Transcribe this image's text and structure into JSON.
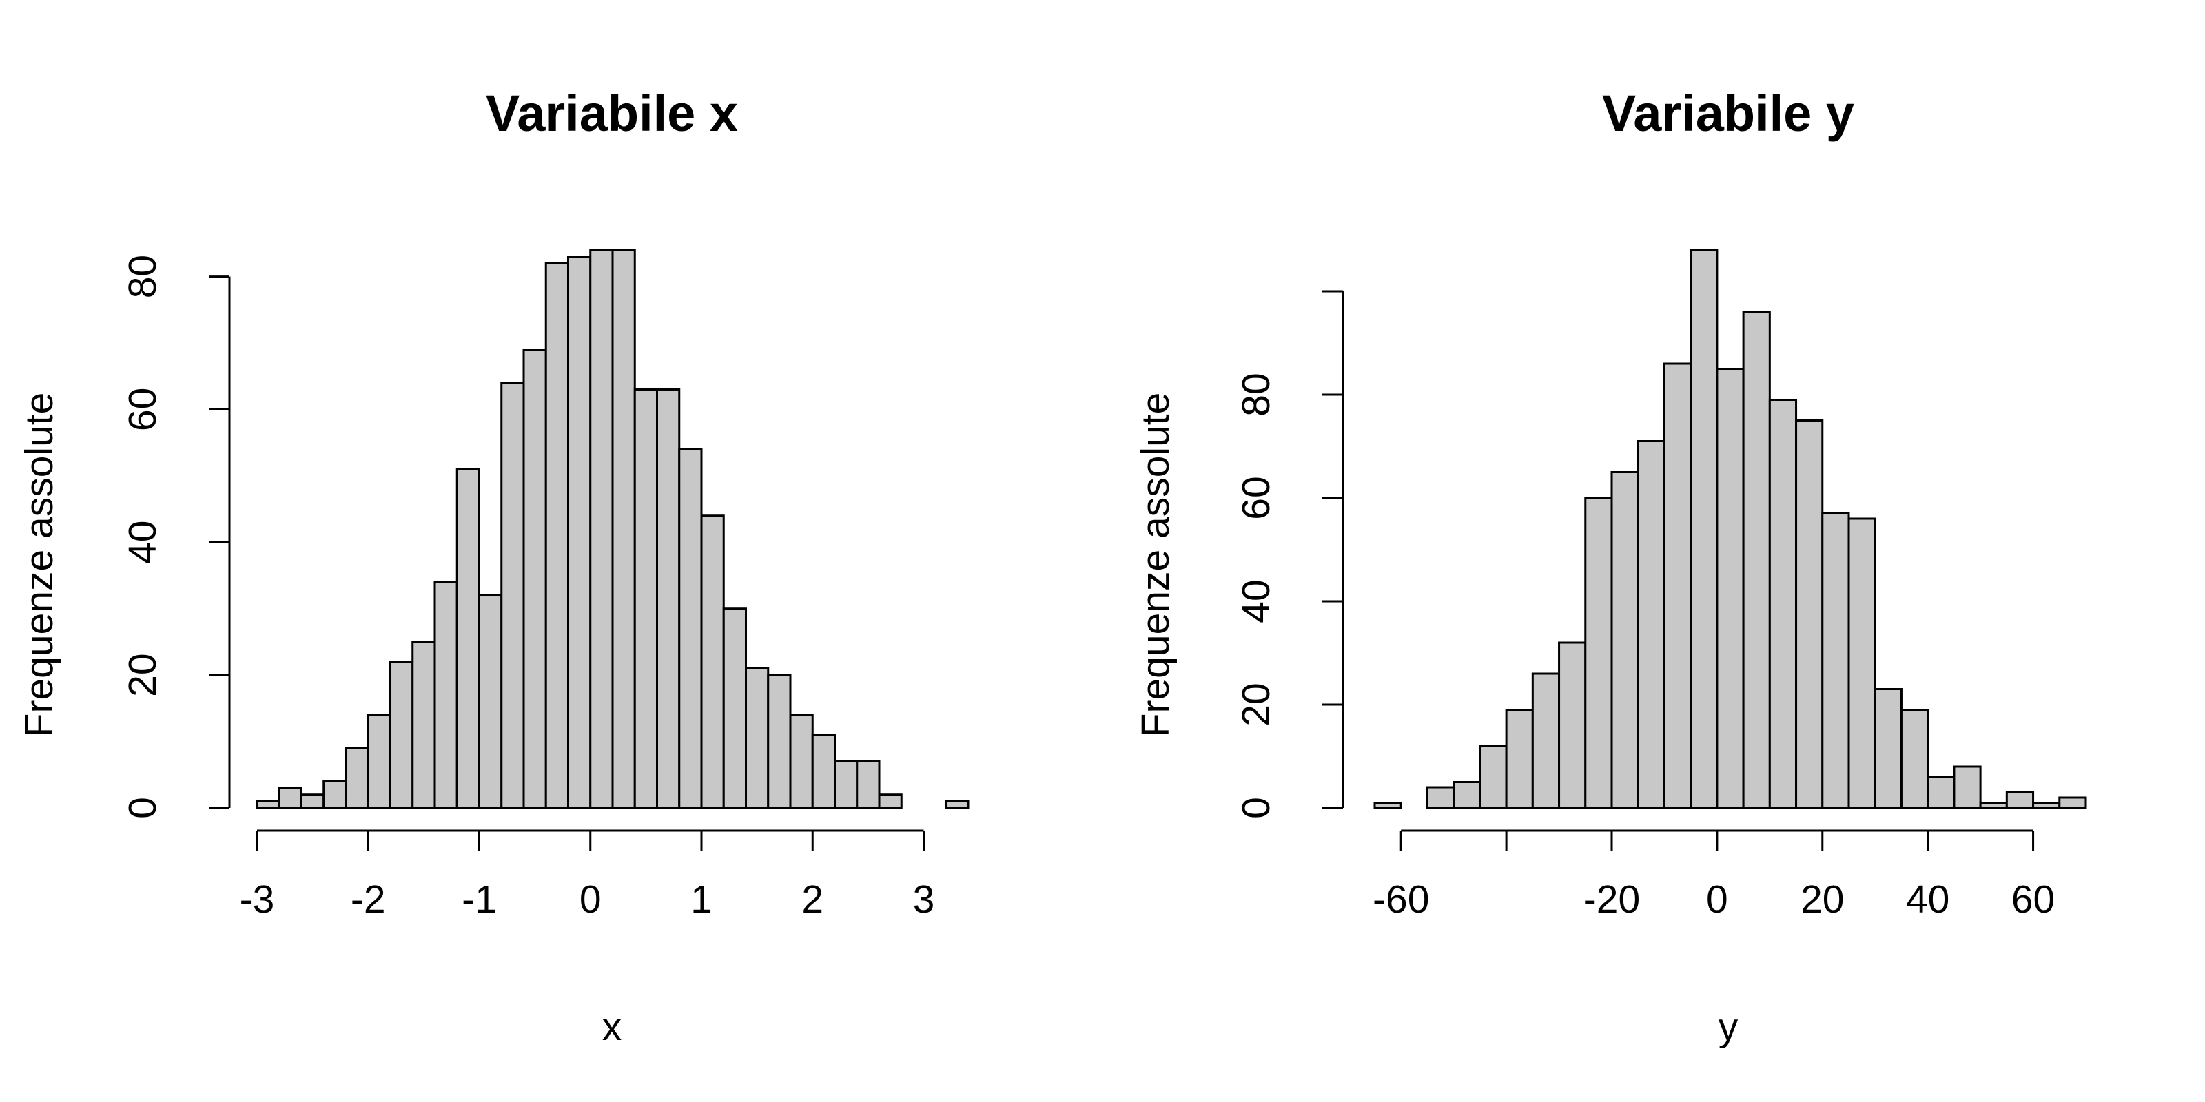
{
  "chart_data": [
    {
      "type": "bar",
      "title": "Variabile x",
      "xlabel": "x",
      "ylabel": "Frequenze assolute",
      "xlim": [
        -3,
        3.4
      ],
      "ylim": [
        0,
        84
      ],
      "xticks": [
        -3,
        -2,
        -1,
        0,
        1,
        2,
        3
      ],
      "yticks": [
        0,
        20,
        40,
        60,
        80
      ],
      "bin_width": 0.2,
      "bins": [
        {
          "from": -3.0,
          "to": -2.8,
          "count": 1
        },
        {
          "from": -2.8,
          "to": -2.6,
          "count": 3
        },
        {
          "from": -2.6,
          "to": -2.4,
          "count": 2
        },
        {
          "from": -2.4,
          "to": -2.2,
          "count": 4
        },
        {
          "from": -2.2,
          "to": -2.0,
          "count": 9
        },
        {
          "from": -2.0,
          "to": -1.8,
          "count": 14
        },
        {
          "from": -1.8,
          "to": -1.6,
          "count": 22
        },
        {
          "from": -1.6,
          "to": -1.4,
          "count": 25
        },
        {
          "from": -1.4,
          "to": -1.2,
          "count": 34
        },
        {
          "from": -1.2,
          "to": -1.0,
          "count": 51
        },
        {
          "from": -1.0,
          "to": -0.8,
          "count": 32
        },
        {
          "from": -0.8,
          "to": -0.6,
          "count": 64
        },
        {
          "from": -0.6,
          "to": -0.4,
          "count": 69
        },
        {
          "from": -0.4,
          "to": -0.2,
          "count": 82
        },
        {
          "from": -0.2,
          "to": 0.0,
          "count": 83
        },
        {
          "from": 0.0,
          "to": 0.2,
          "count": 84
        },
        {
          "from": 0.2,
          "to": 0.4,
          "count": 84
        },
        {
          "from": 0.4,
          "to": 0.6,
          "count": 63
        },
        {
          "from": 0.6,
          "to": 0.8,
          "count": 63
        },
        {
          "from": 0.8,
          "to": 1.0,
          "count": 54
        },
        {
          "from": 1.0,
          "to": 1.2,
          "count": 44
        },
        {
          "from": 1.2,
          "to": 1.4,
          "count": 30
        },
        {
          "from": 1.4,
          "to": 1.6,
          "count": 21
        },
        {
          "from": 1.6,
          "to": 1.8,
          "count": 20
        },
        {
          "from": 1.8,
          "to": 2.0,
          "count": 14
        },
        {
          "from": 2.0,
          "to": 2.2,
          "count": 11
        },
        {
          "from": 2.2,
          "to": 2.4,
          "count": 7
        },
        {
          "from": 2.4,
          "to": 2.6,
          "count": 7
        },
        {
          "from": 2.6,
          "to": 2.8,
          "count": 2
        },
        {
          "from": 2.8,
          "to": 3.0,
          "count": 0
        },
        {
          "from": 3.0,
          "to": 3.2,
          "count": 0
        },
        {
          "from": 3.2,
          "to": 3.4,
          "count": 1
        }
      ],
      "bar_fill": "#c8c8c8",
      "bar_stroke": "#000000",
      "grid": false,
      "legend": "none"
    },
    {
      "type": "bar",
      "title": "Variabile y",
      "xlabel": "y",
      "ylabel": "Frequenze assolute",
      "xlim": [
        -65,
        70
      ],
      "ylim": [
        0,
        108
      ],
      "xticks": [
        -60,
        -40,
        -20,
        0,
        20,
        40,
        60
      ],
      "xtick_labels": [
        "-60",
        "",
        "-20",
        "0",
        "20",
        "40",
        "60"
      ],
      "yticks": [
        0,
        20,
        40,
        60,
        80,
        100
      ],
      "ytick_labels": [
        "0",
        "20",
        "40",
        "60",
        "80",
        ""
      ],
      "bin_width": 5,
      "bins": [
        {
          "from": -65,
          "to": -60,
          "count": 1
        },
        {
          "from": -60,
          "to": -55,
          "count": 0
        },
        {
          "from": -55,
          "to": -50,
          "count": 4
        },
        {
          "from": -50,
          "to": -45,
          "count": 5
        },
        {
          "from": -45,
          "to": -40,
          "count": 12
        },
        {
          "from": -40,
          "to": -35,
          "count": 19
        },
        {
          "from": -35,
          "to": -30,
          "count": 26
        },
        {
          "from": -30,
          "to": -25,
          "count": 32
        },
        {
          "from": -25,
          "to": -20,
          "count": 60
        },
        {
          "from": -20,
          "to": -15,
          "count": 65
        },
        {
          "from": -15,
          "to": -10,
          "count": 71
        },
        {
          "from": -10,
          "to": -5,
          "count": 86
        },
        {
          "from": -5,
          "to": 0,
          "count": 108
        },
        {
          "from": 0,
          "to": 5,
          "count": 85
        },
        {
          "from": 5,
          "to": 10,
          "count": 96
        },
        {
          "from": 10,
          "to": 15,
          "count": 79
        },
        {
          "from": 15,
          "to": 20,
          "count": 75
        },
        {
          "from": 20,
          "to": 25,
          "count": 57
        },
        {
          "from": 25,
          "to": 30,
          "count": 56
        },
        {
          "from": 30,
          "to": 35,
          "count": 23
        },
        {
          "from": 35,
          "to": 40,
          "count": 19
        },
        {
          "from": 40,
          "to": 45,
          "count": 6
        },
        {
          "from": 45,
          "to": 50,
          "count": 8
        },
        {
          "from": 50,
          "to": 55,
          "count": 1
        },
        {
          "from": 55,
          "to": 60,
          "count": 3
        },
        {
          "from": 60,
          "to": 65,
          "count": 1
        },
        {
          "from": 65,
          "to": 70,
          "count": 2
        }
      ],
      "bar_fill": "#c8c8c8",
      "bar_stroke": "#000000",
      "grid": false,
      "legend": "none"
    }
  ]
}
